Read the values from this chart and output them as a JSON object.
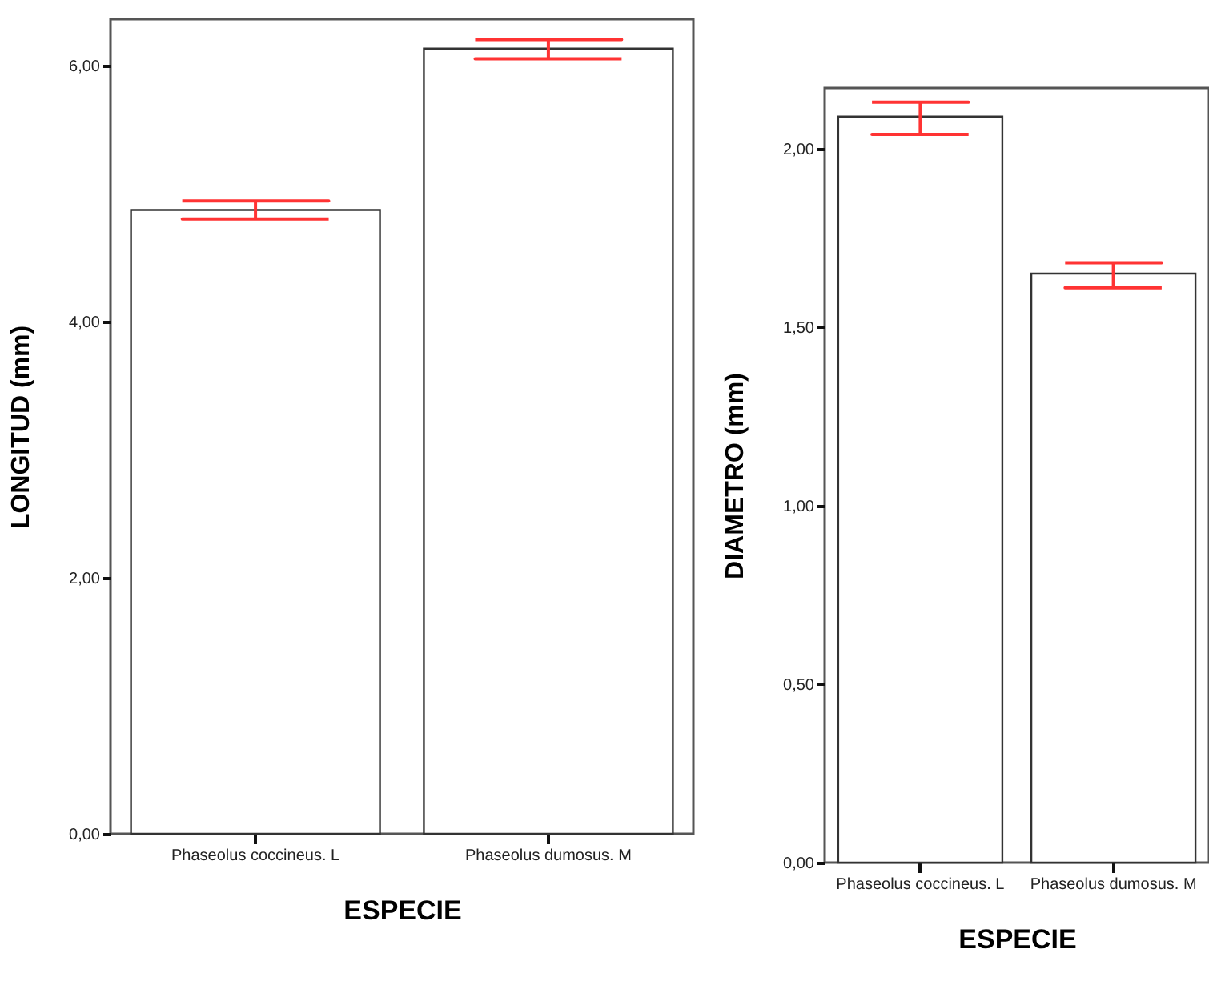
{
  "chart_data": [
    {
      "type": "bar",
      "xlabel": "ESPECIE",
      "ylabel": "LONGITUD (mm)",
      "categories": [
        "Phaseolus coccineus. L",
        "Phaseolus dumosus. M"
      ],
      "values": [
        4.87,
        6.13
      ],
      "errors": [
        [
          4.8,
          4.94
        ],
        [
          6.05,
          6.2
        ]
      ],
      "color": "#ffffff",
      "ylim": [
        0,
        6.36
      ],
      "yticks": [
        {
          "value": 0,
          "label": "0,00"
        },
        {
          "value": 2,
          "label": "2,00"
        },
        {
          "value": 4,
          "label": "4,00"
        },
        {
          "value": 6,
          "label": "6,00"
        }
      ]
    },
    {
      "type": "bar",
      "xlabel": "ESPECIE",
      "ylabel": "DIAMETRO (mm)",
      "categories": [
        "Phaseolus coccineus. L",
        "Phaseolus dumosus. M"
      ],
      "values": [
        2.09,
        1.65
      ],
      "errors": [
        [
          2.04,
          2.13
        ],
        [
          1.61,
          1.68
        ]
      ],
      "color": "#ffffff",
      "ylim": [
        0,
        2.17
      ],
      "yticks": [
        {
          "value": 0,
          "label": "0,00"
        },
        {
          "value": 0.5,
          "label": "0,50"
        },
        {
          "value": 1,
          "label": "1,00"
        },
        {
          "value": 1.5,
          "label": "1,50"
        },
        {
          "value": 2,
          "label": "2,00"
        }
      ]
    }
  ]
}
